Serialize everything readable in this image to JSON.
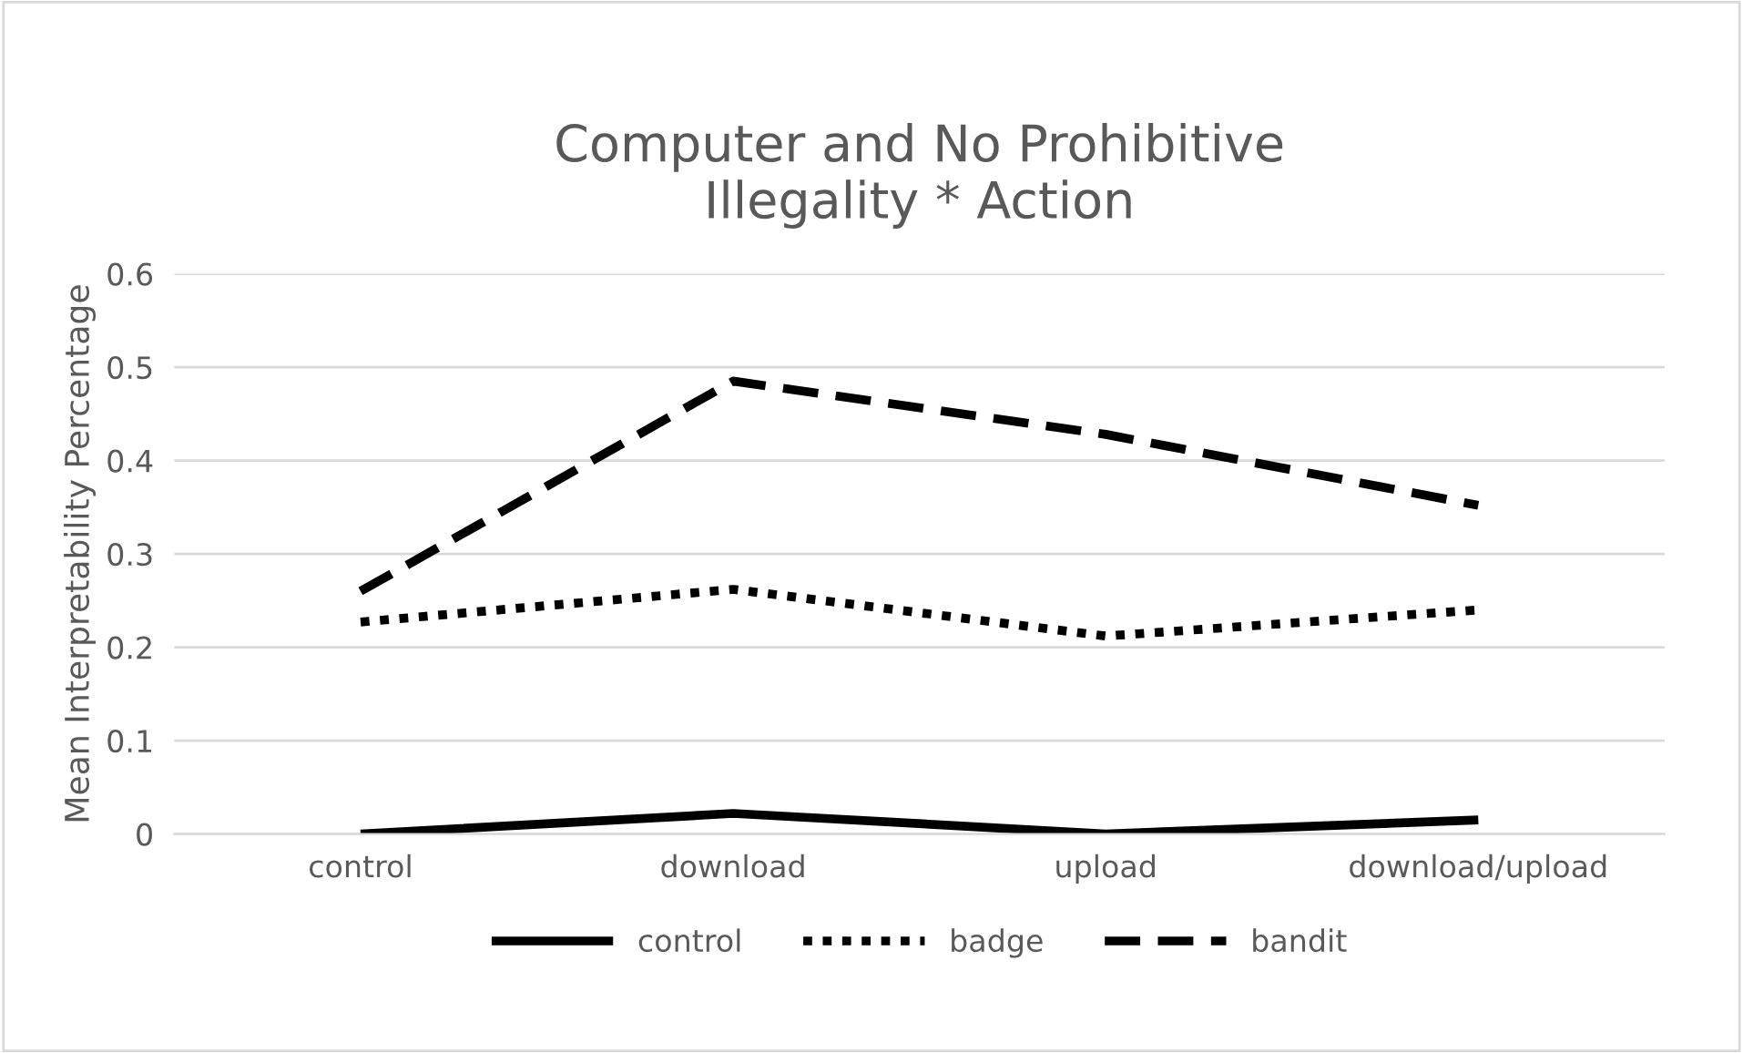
{
  "chart_data": {
    "type": "line",
    "title": "Computer and No Prohibitive\nIllegality * Action",
    "ylabel": "Mean Interpretability Percentage",
    "categories": [
      "control",
      "download",
      "upload",
      "download/upload"
    ],
    "series": [
      {
        "name": "control",
        "color": "#000000",
        "line_style": "solid",
        "values": [
          0.0,
          0.022,
          0.0,
          0.015
        ]
      },
      {
        "name": "badge",
        "color": "#000000",
        "line_style": "dotted",
        "values": [
          0.227,
          0.262,
          0.212,
          0.24
        ]
      },
      {
        "name": "bandit",
        "color": "#000000",
        "line_style": "dashed",
        "values": [
          0.26,
          0.485,
          0.428,
          0.352
        ]
      }
    ],
    "ylim": [
      0,
      0.6
    ],
    "yticks": [
      {
        "value": 0,
        "label": "0"
      },
      0.1,
      0.2,
      0.3,
      0.4,
      0.5,
      0.6
    ],
    "grid": "y",
    "legend": "bottom",
    "marker": "none"
  }
}
